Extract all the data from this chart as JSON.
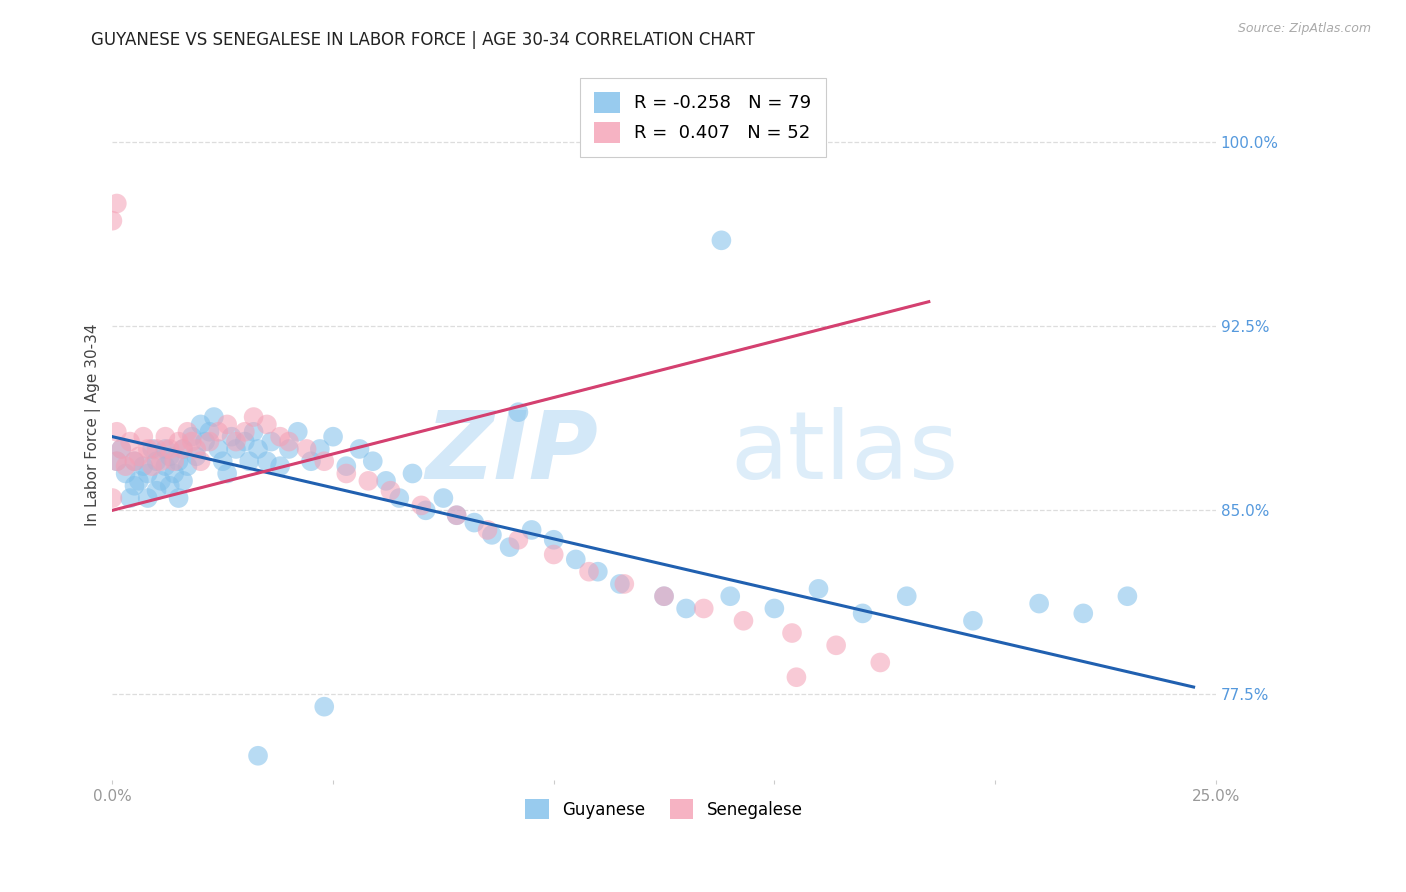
{
  "title": "GUYANESE VS SENEGALESE IN LABOR FORCE | AGE 30-34 CORRELATION CHART",
  "source": "Source: ZipAtlas.com",
  "ylabel": "In Labor Force | Age 30-34",
  "xlim": [
    0.0,
    0.25
  ],
  "ylim": [
    0.74,
    1.03
  ],
  "yticks_right": [
    0.775,
    0.85,
    0.925,
    1.0
  ],
  "yticklabels_right": [
    "77.5%",
    "85.0%",
    "92.5%",
    "100.0%"
  ],
  "blue_color": "#7fbfea",
  "pink_color": "#f4a0b5",
  "blue_line_color": "#2060b0",
  "pink_line_color": "#d44070",
  "ref_line_color": "#c8c8c8",
  "legend_r_blue": "R = -0.258",
  "legend_n_blue": "N = 79",
  "legend_r_pink": "R =  0.407",
  "legend_n_pink": "N = 52",
  "grid_color": "#dddddd",
  "background_color": "#ffffff",
  "title_fontsize": 12,
  "axis_label_fontsize": 11,
  "tick_fontsize": 11,
  "right_tick_color": "#5599dd",
  "blue_trend_x": [
    0.0,
    0.245
  ],
  "blue_trend_y": [
    0.88,
    0.778
  ],
  "pink_trend_x": [
    0.0,
    0.185
  ],
  "pink_trend_y": [
    0.85,
    0.935
  ],
  "ref_line_x": [
    0.0,
    0.185
  ],
  "ref_line_y": [
    0.85,
    0.935
  ],
  "guyanese_x": [
    0.001,
    0.002,
    0.003,
    0.004,
    0.005,
    0.005,
    0.006,
    0.007,
    0.008,
    0.008,
    0.009,
    0.01,
    0.01,
    0.011,
    0.012,
    0.012,
    0.013,
    0.013,
    0.014,
    0.015,
    0.015,
    0.016,
    0.016,
    0.017,
    0.018,
    0.019,
    0.02,
    0.021,
    0.022,
    0.023,
    0.024,
    0.025,
    0.026,
    0.027,
    0.028,
    0.03,
    0.031,
    0.032,
    0.033,
    0.035,
    0.036,
    0.038,
    0.04,
    0.042,
    0.045,
    0.047,
    0.05,
    0.053,
    0.056,
    0.059,
    0.062,
    0.065,
    0.068,
    0.071,
    0.075,
    0.078,
    0.082,
    0.086,
    0.09,
    0.095,
    0.1,
    0.105,
    0.11,
    0.115,
    0.125,
    0.13,
    0.14,
    0.15,
    0.16,
    0.17,
    0.18,
    0.195,
    0.21,
    0.22,
    0.23,
    0.138,
    0.092,
    0.048,
    0.033
  ],
  "guyanese_y": [
    0.87,
    0.875,
    0.865,
    0.855,
    0.86,
    0.87,
    0.862,
    0.868,
    0.855,
    0.865,
    0.875,
    0.858,
    0.87,
    0.862,
    0.868,
    0.875,
    0.86,
    0.872,
    0.865,
    0.855,
    0.87,
    0.862,
    0.875,
    0.868,
    0.88,
    0.872,
    0.885,
    0.878,
    0.882,
    0.888,
    0.875,
    0.87,
    0.865,
    0.88,
    0.875,
    0.878,
    0.87,
    0.882,
    0.875,
    0.87,
    0.878,
    0.868,
    0.875,
    0.882,
    0.87,
    0.875,
    0.88,
    0.868,
    0.875,
    0.87,
    0.862,
    0.855,
    0.865,
    0.85,
    0.855,
    0.848,
    0.845,
    0.84,
    0.835,
    0.842,
    0.838,
    0.83,
    0.825,
    0.82,
    0.815,
    0.81,
    0.815,
    0.81,
    0.818,
    0.808,
    0.815,
    0.805,
    0.812,
    0.808,
    0.815,
    0.96,
    0.89,
    0.77,
    0.75
  ],
  "senegalese_x": [
    0.001,
    0.001,
    0.002,
    0.003,
    0.004,
    0.005,
    0.006,
    0.007,
    0.008,
    0.009,
    0.01,
    0.011,
    0.012,
    0.013,
    0.014,
    0.015,
    0.016,
    0.017,
    0.018,
    0.019,
    0.02,
    0.022,
    0.024,
    0.026,
    0.028,
    0.03,
    0.032,
    0.035,
    0.038,
    0.04,
    0.044,
    0.048,
    0.053,
    0.058,
    0.063,
    0.07,
    0.078,
    0.085,
    0.092,
    0.1,
    0.108,
    0.116,
    0.125,
    0.134,
    0.143,
    0.154,
    0.164,
    0.174,
    0.001,
    0.0,
    0.0,
    0.155
  ],
  "senegalese_y": [
    0.87,
    0.882,
    0.875,
    0.868,
    0.878,
    0.87,
    0.872,
    0.88,
    0.875,
    0.868,
    0.875,
    0.87,
    0.88,
    0.875,
    0.87,
    0.878,
    0.875,
    0.882,
    0.878,
    0.875,
    0.87,
    0.878,
    0.882,
    0.885,
    0.878,
    0.882,
    0.888,
    0.885,
    0.88,
    0.878,
    0.875,
    0.87,
    0.865,
    0.862,
    0.858,
    0.852,
    0.848,
    0.842,
    0.838,
    0.832,
    0.825,
    0.82,
    0.815,
    0.81,
    0.805,
    0.8,
    0.795,
    0.788,
    0.975,
    0.968,
    0.855,
    0.782
  ]
}
